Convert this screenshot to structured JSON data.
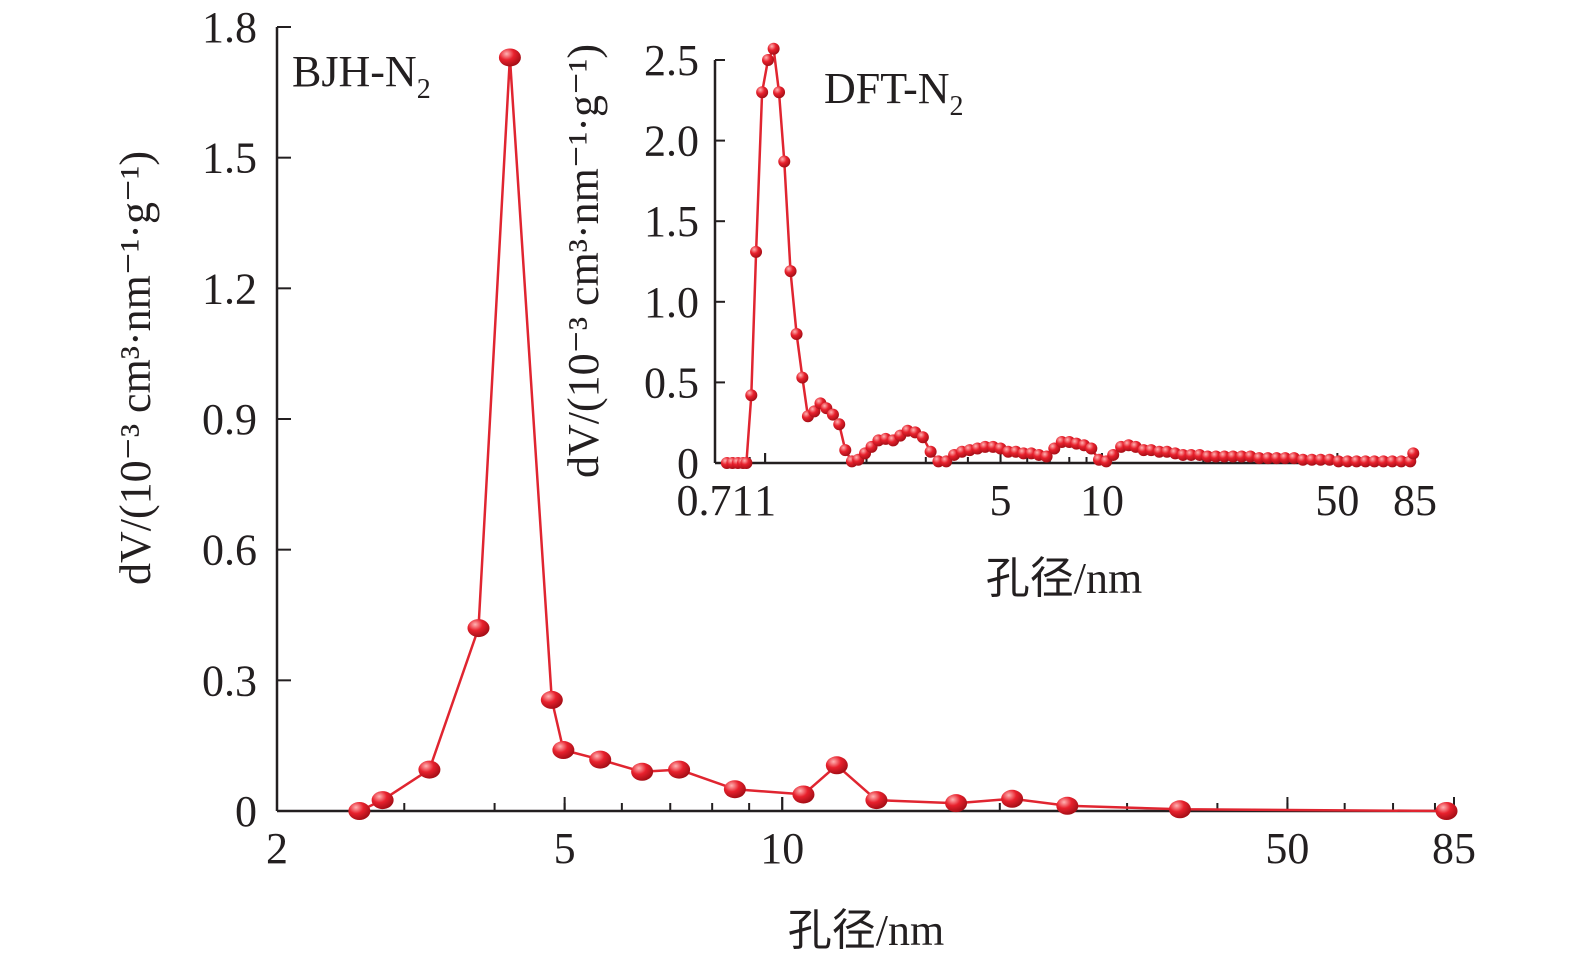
{
  "colors": {
    "series": "#e02530",
    "marker": "#e8212d",
    "marker_highlight": "#ffb3b3",
    "axis": "#231f20",
    "background": "#ffffff"
  },
  "chart_data": [
    {
      "type": "line",
      "panel_label_main": "BJH-N",
      "panel_label_sub": "2",
      "x_scale": "log",
      "xlim": [
        2,
        85
      ],
      "ylim": [
        0,
        1.8
      ],
      "xticks": [
        2,
        5,
        10,
        50,
        85
      ],
      "xtick_labels": [
        "2",
        "5",
        "10",
        "50",
        "85"
      ],
      "yticks": [
        0,
        0.3,
        0.6,
        0.9,
        1.2,
        1.5,
        1.8
      ],
      "ytick_labels": [
        "0",
        "0.3",
        "0.6",
        "0.9",
        "1.2",
        "1.5",
        "1.8"
      ],
      "xlabel": "孔径/nm",
      "ylabel": "dV/(10⁻³ cm³·nm⁻¹·g⁻¹)",
      "series": [
        {
          "x": [
            2.6,
            2.8,
            3.25,
            3.8,
            4.2,
            4.8,
            4.98,
            5.6,
            6.4,
            7.2,
            8.6,
            10.7,
            11.9,
            13.5,
            17.4,
            20.8,
            24.8,
            35.5,
            83
          ],
          "y": [
            0.0,
            0.025,
            0.095,
            0.42,
            1.73,
            0.255,
            0.14,
            0.118,
            0.09,
            0.095,
            0.05,
            0.038,
            0.105,
            0.025,
            0.018,
            0.028,
            0.012,
            0.004,
            0.0
          ]
        }
      ]
    },
    {
      "type": "line",
      "panel_label_main": "DFT-N",
      "panel_label_sub": "2",
      "x_scale": "log",
      "xlim": [
        0.71,
        85
      ],
      "ylim": [
        0,
        2.5
      ],
      "xticks": [
        0.71,
        1,
        5,
        10,
        50,
        85
      ],
      "xtick_labels": [
        "0.71",
        "1",
        "5",
        "10",
        "50",
        "85"
      ],
      "yticks": [
        0,
        0.5,
        1.0,
        1.5,
        2.0,
        2.5
      ],
      "ytick_labels": [
        "0",
        "0.5",
        "1.0",
        "1.5",
        "2.0",
        "2.5"
      ],
      "xlabel": "孔径/nm",
      "ylabel": "dV/(10⁻³ cm³·nm⁻¹·g⁻¹)",
      "series": [
        {
          "x": [
            0.77,
            0.8,
            0.83,
            0.86,
            0.88,
            0.91,
            0.94,
            0.98,
            1.02,
            1.06,
            1.1,
            1.14,
            1.19,
            1.24,
            1.29,
            1.34,
            1.4,
            1.46,
            1.52,
            1.59,
            1.66,
            1.73,
            1.81,
            1.89,
            1.98,
            2.07,
            2.17,
            2.28,
            2.4,
            2.52,
            2.65,
            2.79,
            2.94,
            3.1,
            3.27,
            3.45,
            3.64,
            3.84,
            4.05,
            4.27,
            4.5,
            4.75,
            5.0,
            5.27,
            5.55,
            5.85,
            6.17,
            6.5,
            6.85,
            7.22,
            7.6,
            8.0,
            8.4,
            8.85,
            9.3,
            9.8,
            10.3,
            10.8,
            11.4,
            12.0,
            12.6,
            13.3,
            14.0,
            14.8,
            15.6,
            16.5,
            17.4,
            18.4,
            19.5,
            20.6,
            21.8,
            23.1,
            24.5,
            26.0,
            27.6,
            29.3,
            31.1,
            33.0,
            35.0,
            37.2,
            39.5,
            42.0,
            44.6,
            47.4,
            50.4,
            53.6,
            57.0,
            60.6,
            64.4,
            68.5,
            72.8,
            77.4,
            82.3,
            84.0
          ],
          "y": [
            0,
            0,
            0,
            0,
            0,
            0.42,
            1.31,
            2.3,
            2.5,
            2.57,
            2.3,
            1.87,
            1.19,
            0.8,
            0.53,
            0.29,
            0.32,
            0.37,
            0.34,
            0.3,
            0.24,
            0.08,
            0.01,
            0.02,
            0.06,
            0.1,
            0.14,
            0.15,
            0.14,
            0.17,
            0.2,
            0.19,
            0.16,
            0.07,
            0.01,
            0.01,
            0.05,
            0.07,
            0.08,
            0.09,
            0.1,
            0.1,
            0.09,
            0.07,
            0.07,
            0.06,
            0.06,
            0.05,
            0.04,
            0.09,
            0.13,
            0.13,
            0.12,
            0.11,
            0.09,
            0.02,
            0.01,
            0.05,
            0.1,
            0.11,
            0.1,
            0.08,
            0.08,
            0.07,
            0.07,
            0.06,
            0.05,
            0.05,
            0.05,
            0.04,
            0.04,
            0.04,
            0.04,
            0.04,
            0.04,
            0.03,
            0.03,
            0.03,
            0.03,
            0.03,
            0.02,
            0.02,
            0.02,
            0.02,
            0.01,
            0.01,
            0.01,
            0.01,
            0.01,
            0.01,
            0.01,
            0.01,
            0.01,
            0.06
          ]
        }
      ]
    }
  ]
}
